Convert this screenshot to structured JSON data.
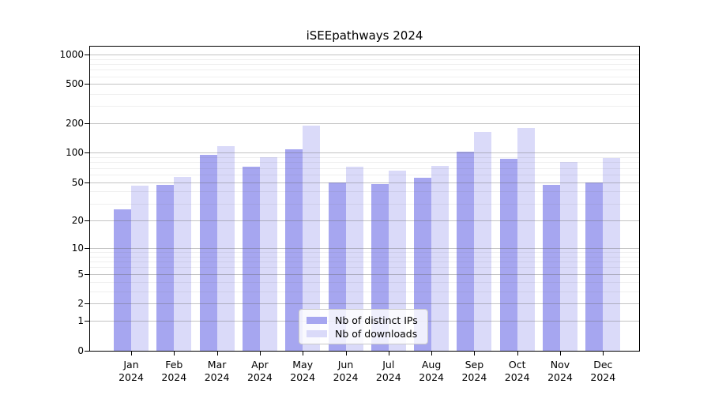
{
  "title": "iSEEpathways 2024",
  "colors": {
    "ips_bar": "#a6a6f0",
    "downloads_bar": "#dadaf9",
    "axis": "#000000",
    "grid_major": "#bdbdbd",
    "grid_minor": "#ececec",
    "background": "#ffffff"
  },
  "chart_data": {
    "type": "bar",
    "title": "iSEEpathways 2024",
    "xlabel": "",
    "ylabel": "",
    "scale": "log1p",
    "ylim": [
      0,
      1200
    ],
    "grid": "on",
    "legend_position": "bottom-center",
    "categories": [
      "Jan 2024",
      "Feb 2024",
      "Mar 2024",
      "Apr 2024",
      "May 2024",
      "Jun 2024",
      "Jul 2024",
      "Aug 2024",
      "Sep 2024",
      "Oct 2024",
      "Nov 2024",
      "Dec 2024"
    ],
    "categories_line1": [
      "Jan",
      "Feb",
      "Mar",
      "Apr",
      "May",
      "Jun",
      "Jul",
      "Aug",
      "Sep",
      "Oct",
      "Nov",
      "Dec"
    ],
    "categories_line2": [
      "2024",
      "2024",
      "2024",
      "2024",
      "2024",
      "2024",
      "2024",
      "2024",
      "2024",
      "2024",
      "2024",
      "2024"
    ],
    "y_ticks": [
      0,
      1,
      2,
      5,
      10,
      20,
      50,
      100,
      200,
      500,
      1000
    ],
    "y_minor_gridlines": [
      3,
      4,
      6,
      7,
      8,
      9,
      30,
      40,
      60,
      70,
      80,
      90,
      300,
      400,
      600,
      700,
      800,
      900
    ],
    "series": [
      {
        "name": "Nb of distinct IPs",
        "color": "#a6a6f0",
        "values": [
          26,
          47,
          96,
          72,
          108,
          50,
          48,
          55,
          103,
          87,
          47,
          50
        ]
      },
      {
        "name": "Nb of downloads",
        "color": "#dadaf9",
        "values": [
          46,
          57,
          116,
          90,
          190,
          72,
          66,
          74,
          162,
          180,
          81,
          89
        ]
      }
    ]
  }
}
